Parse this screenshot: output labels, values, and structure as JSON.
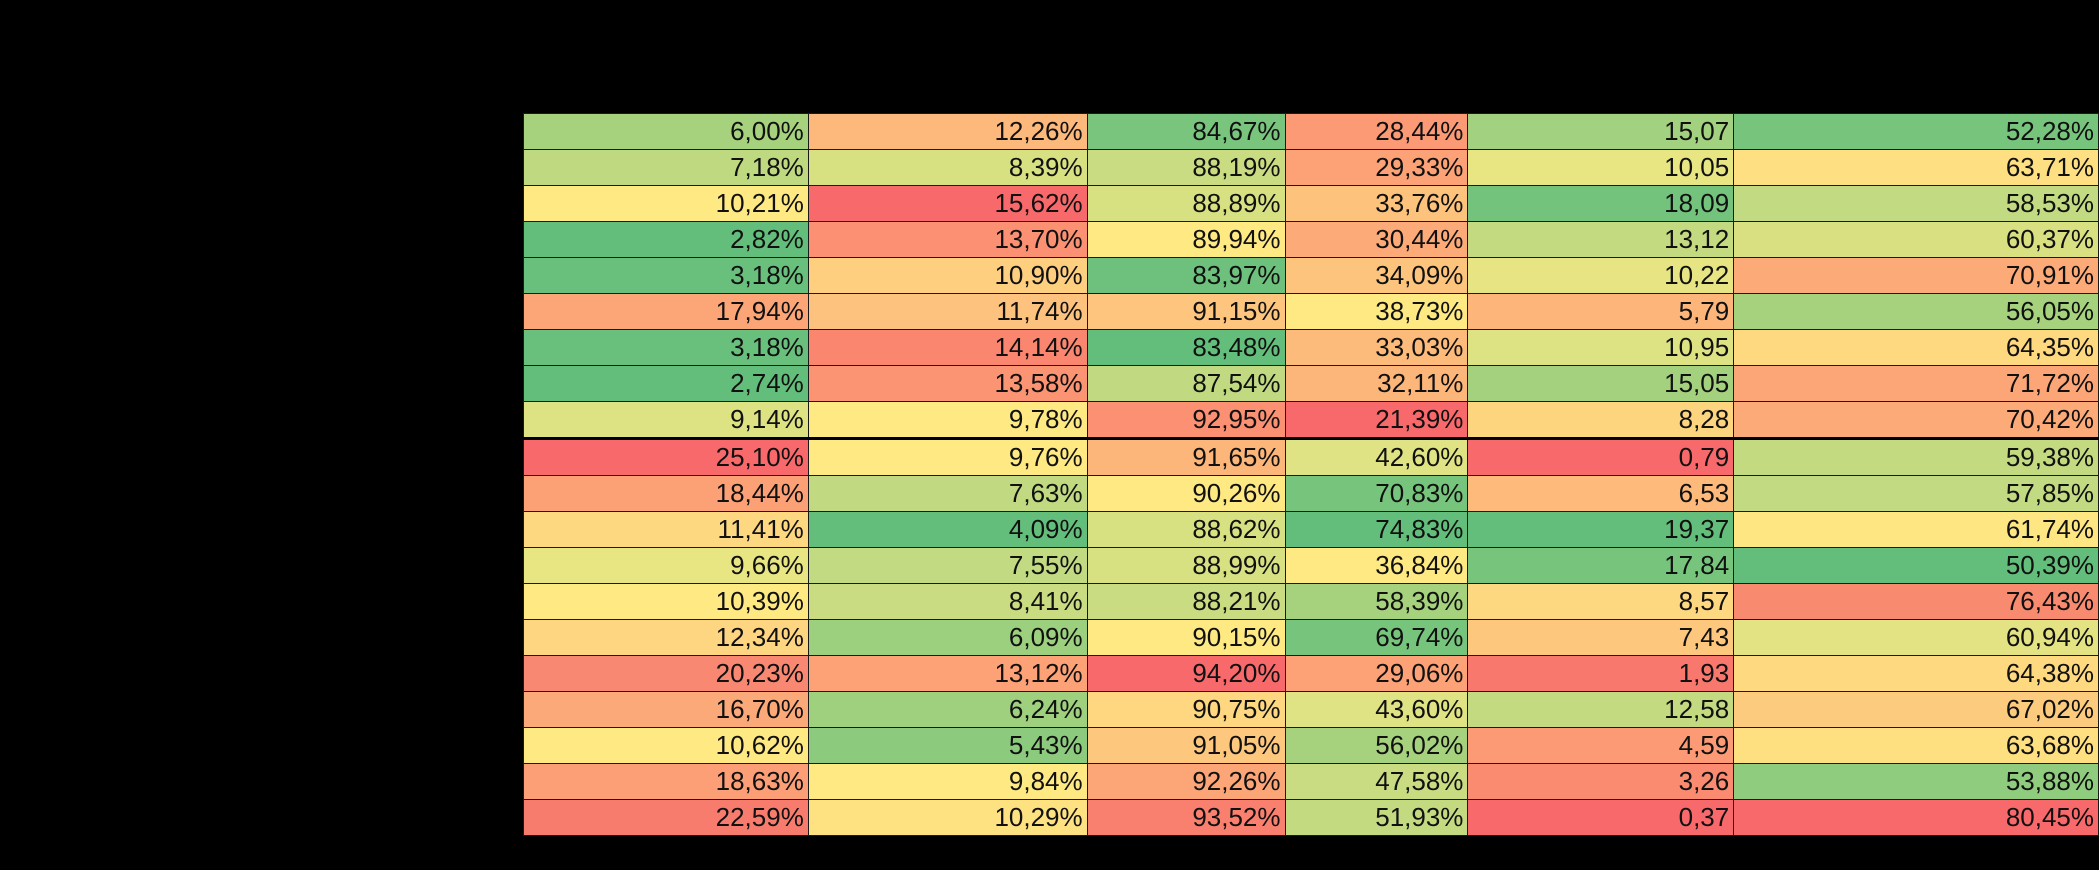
{
  "colors": {
    "background": "#000000",
    "scale_low": "#63be7b",
    "scale_mid": "#ffeb84",
    "scale_high": "#f8696b"
  },
  "table": {
    "rows": [
      [
        "6,00%",
        "12,26%",
        "84,67%",
        "28,44%",
        "15,07",
        "52,28%"
      ],
      [
        "7,18%",
        "8,39%",
        "88,19%",
        "29,33%",
        "10,05",
        "63,71%"
      ],
      [
        "10,21%",
        "15,62%",
        "88,89%",
        "33,76%",
        "18,09",
        "58,53%"
      ],
      [
        "2,82%",
        "13,70%",
        "89,94%",
        "30,44%",
        "13,12",
        "60,37%"
      ],
      [
        "3,18%",
        "10,90%",
        "83,97%",
        "34,09%",
        "10,22",
        "70,91%"
      ],
      [
        "17,94%",
        "11,74%",
        "91,15%",
        "38,73%",
        "5,79",
        "56,05%"
      ],
      [
        "3,18%",
        "14,14%",
        "83,48%",
        "33,03%",
        "10,95",
        "64,35%"
      ],
      [
        "2,74%",
        "13,58%",
        "87,54%",
        "32,11%",
        "15,05",
        "71,72%"
      ],
      [
        "9,14%",
        "9,78%",
        "92,95%",
        "21,39%",
        "8,28",
        "70,42%"
      ],
      [
        "25,10%",
        "9,76%",
        "91,65%",
        "42,60%",
        "0,79",
        "59,38%"
      ],
      [
        "18,44%",
        "7,63%",
        "90,26%",
        "70,83%",
        "6,53",
        "57,85%"
      ],
      [
        "11,41%",
        "4,09%",
        "88,62%",
        "74,83%",
        "19,37",
        "61,74%"
      ],
      [
        "9,66%",
        "7,55%",
        "88,99%",
        "36,84%",
        "17,84",
        "50,39%"
      ],
      [
        "10,39%",
        "8,41%",
        "88,21%",
        "58,39%",
        "8,57",
        "76,43%"
      ],
      [
        "12,34%",
        "6,09%",
        "90,15%",
        "69,74%",
        "7,43",
        "60,94%"
      ],
      [
        "20,23%",
        "13,12%",
        "94,20%",
        "29,06%",
        "1,93",
        "64,38%"
      ],
      [
        "16,70%",
        "6,24%",
        "90,75%",
        "43,60%",
        "12,58",
        "67,02%"
      ],
      [
        "10,62%",
        "5,43%",
        "91,05%",
        "56,02%",
        "4,59",
        "63,68%"
      ],
      [
        "18,63%",
        "9,84%",
        "92,26%",
        "47,58%",
        "3,26",
        "53,88%"
      ],
      [
        "22,59%",
        "10,29%",
        "93,52%",
        "51,93%",
        "0,37",
        "80,45%"
      ]
    ],
    "cell_colors": [
      [
        "#a6d27e",
        "#fdb97b",
        "#7ac57d",
        "#fc9a75",
        "#a2d17f",
        "#77c47d"
      ],
      [
        "#bfd980",
        "#d8e182",
        "#c9dc81",
        "#fca276",
        "#e8e583",
        "#fee082"
      ],
      [
        "#fee983",
        "#f8696b",
        "#d8e182",
        "#fdc37d",
        "#73c37c",
        "#c2da81"
      ],
      [
        "#63be7b",
        "#fb9172",
        "#fee983",
        "#fcab78",
        "#c4da80",
        "#d9e082"
      ],
      [
        "#69c07c",
        "#fecf7f",
        "#6ec17c",
        "#fdc47d",
        "#e7e583",
        "#fcaa78"
      ],
      [
        "#fca577",
        "#fdc27d",
        "#fdc57d",
        "#fee983",
        "#fdb57a",
        "#a6d27e"
      ],
      [
        "#69c07c",
        "#fa8670",
        "#63be7b",
        "#fdbb7b",
        "#dde283",
        "#fed980"
      ],
      [
        "#63be7b",
        "#fb9473",
        "#c1da81",
        "#fdb67a",
        "#a4d17e",
        "#fca677"
      ],
      [
        "#dde283",
        "#fee983",
        "#fb9172",
        "#f8696b",
        "#fdd57f",
        "#fcaa78"
      ],
      [
        "#f8696b",
        "#fee983",
        "#fdb67a",
        "#e0e383",
        "#f8696b",
        "#c4da80"
      ],
      [
        "#fca176",
        "#c1da81",
        "#fee983",
        "#77c47d",
        "#fdba7b",
        "#c2da81"
      ],
      [
        "#fed880",
        "#63be7b",
        "#d8e182",
        "#63be7b",
        "#63be7b",
        "#fee683"
      ],
      [
        "#e8e583",
        "#c2da81",
        "#d8e182",
        "#fee983",
        "#77c47d",
        "#63be7b"
      ],
      [
        "#fee983",
        "#c9dc81",
        "#c9dc81",
        "#a6d27e",
        "#fed880",
        "#f88a70"
      ],
      [
        "#fed580",
        "#9cd07e",
        "#fee983",
        "#77c47d",
        "#fdc87e",
        "#e3e383"
      ],
      [
        "#f98872",
        "#fca276",
        "#f8696b",
        "#fca276",
        "#f8786d",
        "#fed980"
      ],
      [
        "#fca97a",
        "#9ed07e",
        "#fed780",
        "#e0e383",
        "#c4da80",
        "#fdcb7e"
      ],
      [
        "#fee983",
        "#8cca7e",
        "#fec77e",
        "#a6d27e",
        "#fc9a75",
        "#fee081"
      ],
      [
        "#fc9f76",
        "#fee983",
        "#fca677",
        "#c9dc81",
        "#fa8a70",
        "#90cc7e"
      ],
      [
        "#f87c6e",
        "#fee282",
        "#f9806f",
        "#c4da80",
        "#f8696b",
        "#f8696b"
      ]
    ]
  }
}
